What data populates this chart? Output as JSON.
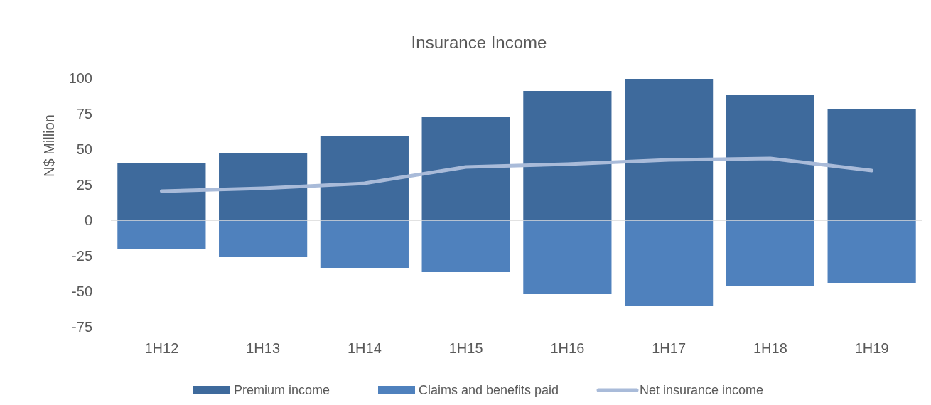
{
  "chart_data": {
    "type": "bar",
    "title": "Insurance Income",
    "ylabel": "N$ Million",
    "stacked": true,
    "legend": "bottom",
    "categories": [
      "1H12",
      "1H13",
      "1H14",
      "1H15",
      "1H16",
      "1H17",
      "1H18",
      "1H19"
    ],
    "ylim": [
      -75,
      100
    ],
    "yticks": [
      -75,
      -50,
      -25,
      0,
      25,
      50,
      75,
      100
    ],
    "series": [
      {
        "name": "Premium income",
        "color": "#3e6a9c",
        "values": [
          40.5,
          47.5,
          59,
          73,
          91,
          99.5,
          88.5,
          78
        ]
      },
      {
        "name": "Claims and benefits paid",
        "color": "#4f81bd",
        "values": [
          -20.5,
          -25.5,
          -33.5,
          -36.5,
          -52,
          -60,
          -46,
          -44
        ]
      },
      {
        "name": "Net insurance income",
        "type": "line",
        "color": "#a9bbd9",
        "values": [
          20.5,
          22.5,
          26,
          37.5,
          39.5,
          42.5,
          43.5,
          35
        ]
      }
    ]
  }
}
